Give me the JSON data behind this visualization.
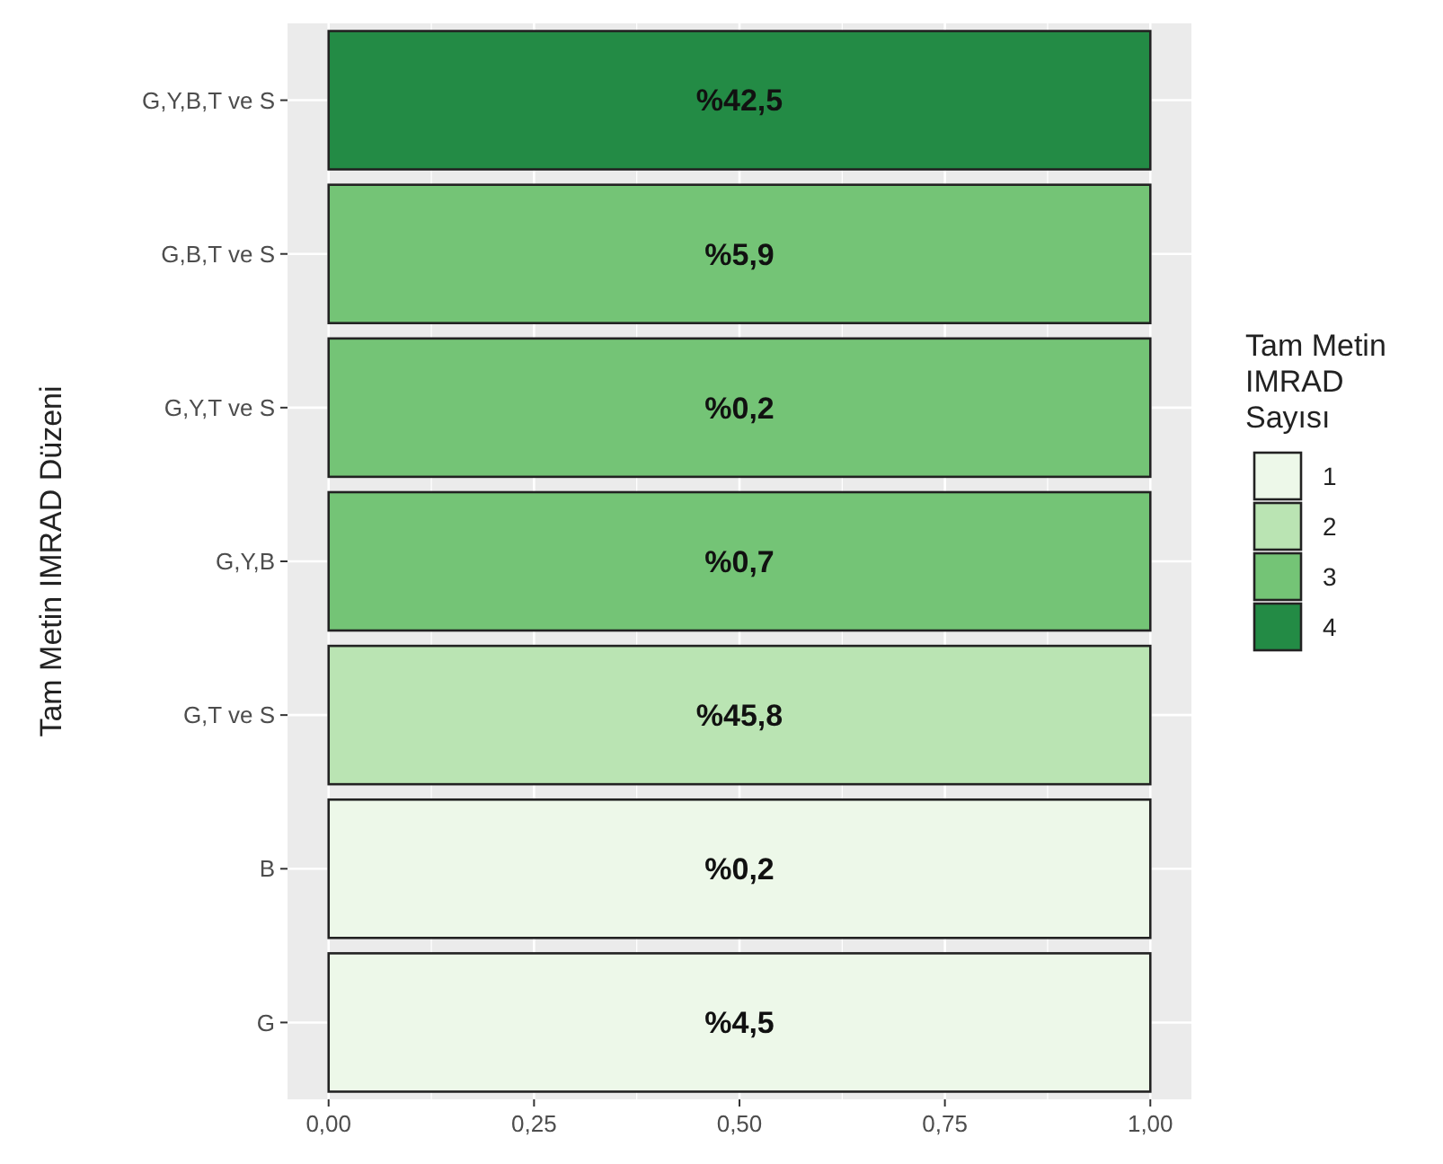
{
  "chart_data": {
    "type": "bar",
    "orientation": "horizontal",
    "ylabel": "Tam Metin IMRAD Düzeni",
    "legend_title": "Tam Metin IMRAD Sayısı",
    "legend": "right",
    "categories": [
      "G,Y,B,T ve S",
      "G,B,T ve S",
      "G,Y,T ve S",
      "G,Y,B",
      "G,T ve S",
      "B",
      "G"
    ],
    "series": [
      {
        "name": "1",
        "color": "#edf8e9",
        "values": [
          null,
          null,
          null,
          null,
          null,
          1,
          1
        ]
      },
      {
        "name": "2",
        "color": "#bae4b3",
        "values": [
          null,
          null,
          null,
          null,
          1,
          null,
          null
        ]
      },
      {
        "name": "3",
        "color": "#74c476",
        "values": [
          null,
          1,
          1,
          1,
          null,
          null,
          null
        ]
      },
      {
        "name": "4",
        "color": "#238b45",
        "values": [
          1,
          null,
          null,
          null,
          null,
          null,
          null
        ]
      }
    ],
    "annotations": [
      {
        "text": "%42,5",
        "y": "G,Y,B,T ve S"
      },
      {
        "text": "%5,9",
        "y": "G,B,T ve S"
      },
      {
        "text": "%0,2",
        "y": "G,Y,T ve S"
      },
      {
        "text": "%0,7",
        "y": "G,Y,B"
      },
      {
        "text": "%45,8",
        "y": "G,T ve S"
      },
      {
        "text": "%0,2",
        "y": "B"
      },
      {
        "text": "%4,5",
        "y": "G"
      }
    ],
    "xlim": [
      -0.05,
      1.05
    ],
    "xticks": [
      {
        "value": 0,
        "label": "0,00"
      },
      {
        "value": 0.25,
        "label": "0,25"
      },
      {
        "value": 0.5,
        "label": "0,50"
      },
      {
        "value": 0.75,
        "label": "0,75"
      },
      {
        "value": 1,
        "label": "1,00"
      }
    ],
    "grid": true
  }
}
